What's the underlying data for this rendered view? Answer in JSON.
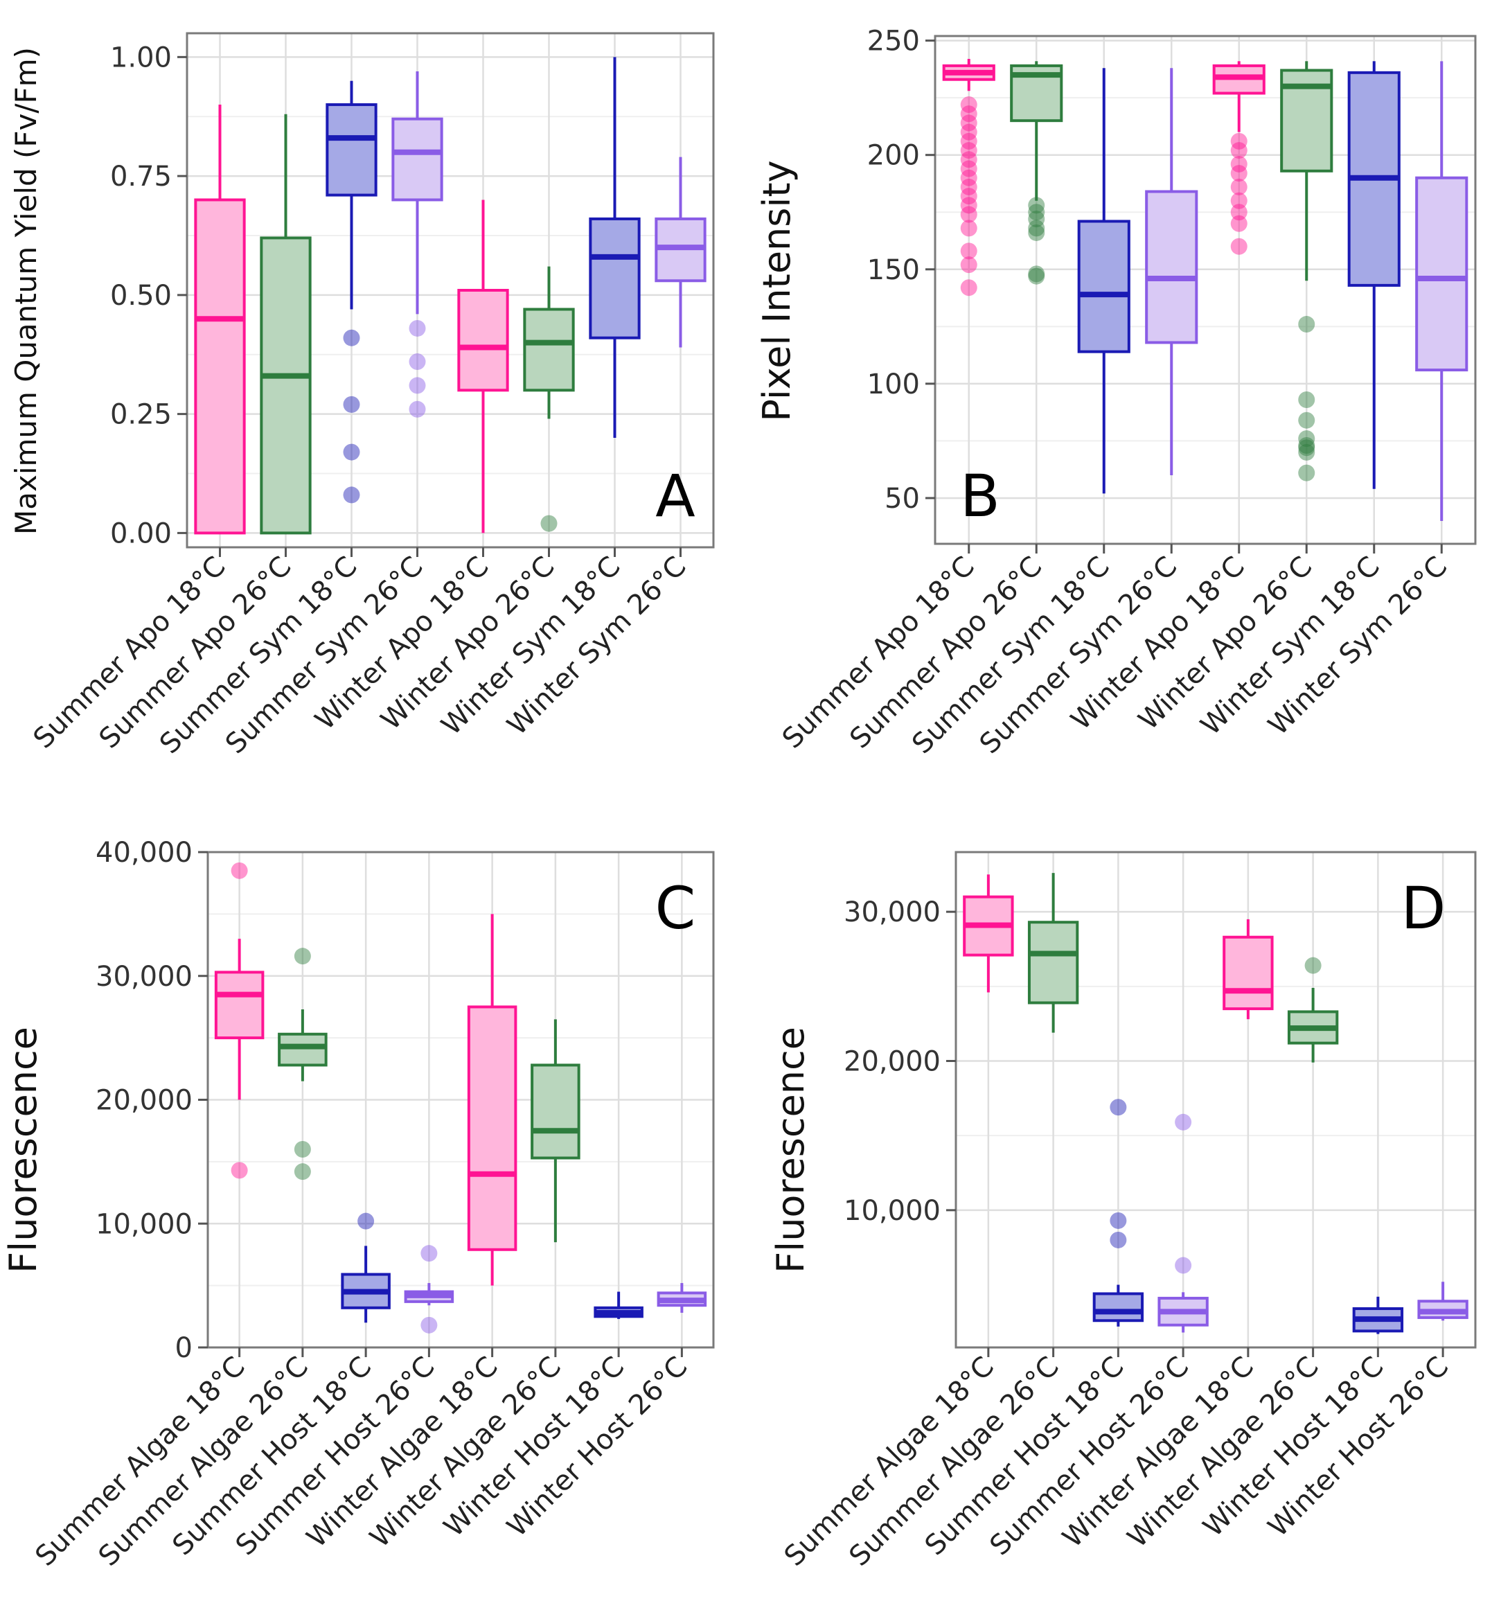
{
  "colors": {
    "summer_apo": "#ff1493",
    "summer_apo_fill": "#ffb6dc",
    "summer_sym_green": "#2e7d3e",
    "summer_sym_green_fill": "#b9d6bd",
    "dark_blue": "#1a1ab4",
    "dark_blue_fill": "#a5a9e6",
    "light_purple": "#8a5ce6",
    "light_purple_fill": "#d9c9f5"
  },
  "chart_data": [
    {
      "panel": "A",
      "type": "box",
      "ylabel": "Maximum Quantum Yield (Fv/Fm)",
      "ylim": [
        -0.03,
        1.05
      ],
      "yticks": [
        0,
        0.25,
        0.5,
        0.75,
        1.0
      ],
      "ytick_labels": [
        "0.00",
        "0.25",
        "0.50",
        "0.75",
        "1.00"
      ],
      "categories": [
        "Summer Apo 18°C",
        "Summer Apo 26°C",
        "Summer Sym 18°C",
        "Summer Sym 26°C",
        "Winter Apo 18°C",
        "Winter Apo 26°C",
        "Winter Sym 18°C",
        "Winter Sym 26°C"
      ],
      "boxes": [
        {
          "low": 0.0,
          "q1": 0.0,
          "median": 0.45,
          "q3": 0.7,
          "high": 0.9,
          "outliers": []
        },
        {
          "low": 0.0,
          "q1": 0.0,
          "median": 0.33,
          "q3": 0.62,
          "high": 0.88,
          "outliers": []
        },
        {
          "low": 0.47,
          "q1": 0.71,
          "median": 0.83,
          "q3": 0.9,
          "high": 0.95,
          "outliers": [
            0.41,
            0.27,
            0.17,
            0.08
          ]
        },
        {
          "low": 0.46,
          "q1": 0.7,
          "median": 0.8,
          "q3": 0.87,
          "high": 0.97,
          "outliers": [
            0.43,
            0.36,
            0.31,
            0.26
          ]
        },
        {
          "low": 0.0,
          "q1": 0.3,
          "median": 0.39,
          "q3": 0.51,
          "high": 0.7,
          "outliers": []
        },
        {
          "low": 0.24,
          "q1": 0.3,
          "median": 0.4,
          "q3": 0.47,
          "high": 0.56,
          "outliers": [
            0.02
          ]
        },
        {
          "low": 0.2,
          "q1": 0.41,
          "median": 0.58,
          "q3": 0.66,
          "high": 1.0,
          "outliers": []
        },
        {
          "low": 0.39,
          "q1": 0.53,
          "median": 0.6,
          "q3": 0.66,
          "high": 0.79,
          "outliers": []
        }
      ]
    },
    {
      "panel": "B",
      "type": "box",
      "ylabel": "Pixel Intensity",
      "ylim": [
        30,
        252
      ],
      "yticks": [
        50,
        100,
        150,
        200,
        250
      ],
      "ytick_labels": [
        "50",
        "100",
        "150",
        "200",
        "250"
      ],
      "categories": [
        "Summer Apo 18°C",
        "Summer Apo 26°C",
        "Summer Sym 18°C",
        "Summer Sym 26°C",
        "Winter Apo 18°C",
        "Winter Apo 26°C",
        "Winter Sym 18°C",
        "Winter Sym 26°C"
      ],
      "boxes": [
        {
          "low": 228,
          "q1": 233,
          "median": 236,
          "q3": 239,
          "high": 242,
          "outliers": [
            222,
            218,
            214,
            210,
            206,
            202,
            198,
            194,
            190,
            186,
            182,
            178,
            174,
            168,
            158,
            152,
            142
          ]
        },
        {
          "low": 180,
          "q1": 215,
          "median": 235,
          "q3": 239,
          "high": 241,
          "outliers": [
            178,
            175,
            172,
            168,
            166,
            148,
            147
          ]
        },
        {
          "low": 52,
          "q1": 114,
          "median": 139,
          "q3": 171,
          "high": 238,
          "outliers": []
        },
        {
          "low": 60,
          "q1": 118,
          "median": 146,
          "q3": 184,
          "high": 238,
          "outliers": []
        },
        {
          "low": 210,
          "q1": 227,
          "median": 234,
          "q3": 239,
          "high": 241,
          "outliers": [
            206,
            202,
            196,
            192,
            186,
            180,
            175,
            170,
            160
          ]
        },
        {
          "low": 145,
          "q1": 193,
          "median": 230,
          "q3": 237,
          "high": 241,
          "outliers": [
            126,
            93,
            84,
            76,
            73,
            72,
            70,
            61
          ]
        },
        {
          "low": 54,
          "q1": 143,
          "median": 190,
          "q3": 236,
          "high": 241,
          "outliers": []
        },
        {
          "low": 40,
          "q1": 106,
          "median": 146,
          "q3": 190,
          "high": 241,
          "outliers": []
        }
      ]
    },
    {
      "panel": "C",
      "type": "box",
      "ylabel": "Fluorescence",
      "ylim": [
        0,
        40000
      ],
      "yticks": [
        0,
        10000,
        20000,
        30000,
        40000
      ],
      "ytick_labels": [
        "0",
        "10,000",
        "20,000",
        "30,000",
        "40,000"
      ],
      "categories": [
        "Summer Algae 18°C",
        "Summer Algae 26°C",
        "Summer Host 18°C",
        "Summer Host 26°C",
        "Winter Algae 18°C",
        "Winter Algae 26°C",
        "Winter Host 18°C",
        "Winter Host 26°C"
      ],
      "boxes": [
        {
          "low": 20000,
          "q1": 25000,
          "median": 28500,
          "q3": 30300,
          "high": 33000,
          "outliers": [
            38500,
            14300
          ]
        },
        {
          "low": 21500,
          "q1": 22800,
          "median": 24300,
          "q3": 25300,
          "high": 27300,
          "outliers": [
            31600,
            16000,
            14200
          ]
        },
        {
          "low": 2000,
          "q1": 3200,
          "median": 4500,
          "q3": 5900,
          "high": 8200,
          "outliers": [
            10200
          ]
        },
        {
          "low": 3400,
          "q1": 3700,
          "median": 4200,
          "q3": 4500,
          "high": 5200,
          "outliers": [
            7600,
            1800
          ]
        },
        {
          "low": 5000,
          "q1": 7900,
          "median": 14000,
          "q3": 27500,
          "high": 35000,
          "outliers": []
        },
        {
          "low": 8500,
          "q1": 15300,
          "median": 17500,
          "q3": 22800,
          "high": 26500,
          "outliers": []
        },
        {
          "low": 2300,
          "q1": 2500,
          "median": 2800,
          "q3": 3200,
          "high": 4500,
          "outliers": []
        },
        {
          "low": 2800,
          "q1": 3400,
          "median": 3800,
          "q3": 4400,
          "high": 5200,
          "outliers": []
        }
      ]
    },
    {
      "panel": "D",
      "type": "box",
      "ylabel": "Fluorescence",
      "ylim": [
        800,
        34000
      ],
      "yticks": [
        10000,
        20000,
        30000
      ],
      "ytick_labels": [
        "10,000",
        "20,000",
        "30,000"
      ],
      "categories": [
        "Summer Algae 18°C",
        "Summer Algae 26°C",
        "Summer Host 18°C",
        "Summer Host 26°C",
        "Winter Algae 18°C",
        "Winter Algae 26°C",
        "Winter Host 18°C",
        "Winter Host 26°C"
      ],
      "boxes": [
        {
          "low": 24600,
          "q1": 27100,
          "median": 29100,
          "q3": 31000,
          "high": 32500,
          "outliers": []
        },
        {
          "low": 21900,
          "q1": 23900,
          "median": 27200,
          "q3": 29300,
          "high": 32600,
          "outliers": []
        },
        {
          "low": 2200,
          "q1": 2600,
          "median": 3200,
          "q3": 4400,
          "high": 5000,
          "outliers": [
            16900,
            9300,
            8000
          ]
        },
        {
          "low": 1800,
          "q1": 2300,
          "median": 3200,
          "q3": 4100,
          "high": 4500,
          "outliers": [
            15900,
            6300
          ]
        },
        {
          "low": 22800,
          "q1": 23500,
          "median": 24700,
          "q3": 28300,
          "high": 29500,
          "outliers": []
        },
        {
          "low": 19900,
          "q1": 21200,
          "median": 22200,
          "q3": 23300,
          "high": 24900,
          "outliers": [
            26400
          ]
        },
        {
          "low": 1700,
          "q1": 1900,
          "median": 2700,
          "q3": 3400,
          "high": 4200,
          "outliers": []
        },
        {
          "low": 2600,
          "q1": 2800,
          "median": 3200,
          "q3": 3900,
          "high": 5200,
          "outliers": []
        }
      ]
    }
  ]
}
